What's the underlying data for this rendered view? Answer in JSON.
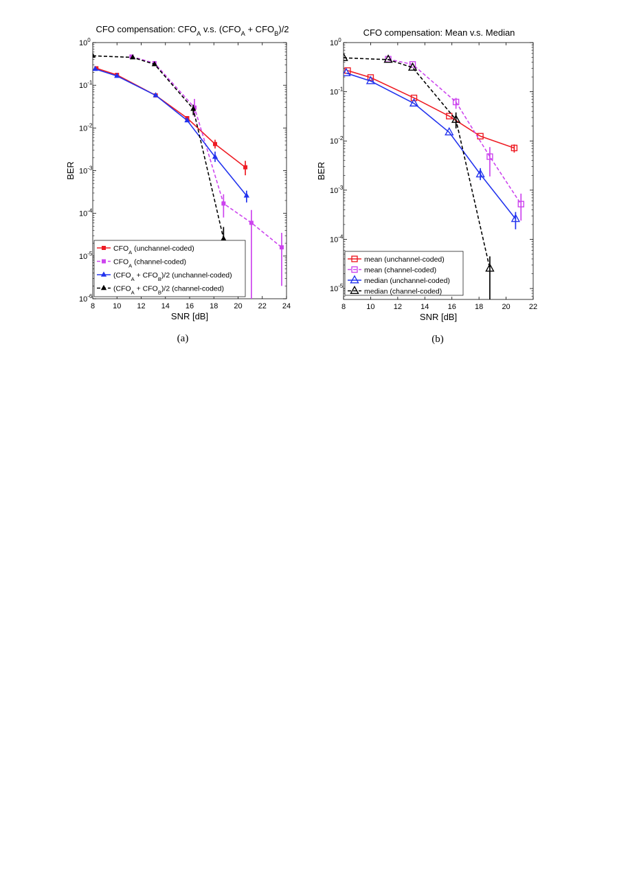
{
  "figure": {
    "caption_a": "(a)",
    "caption_b": "(b)"
  },
  "chart_data": [
    {
      "id": "a",
      "type": "line",
      "title": "CFO compensation: CFO_A v.s. (CFO_A + CFO_B)/2",
      "title_parts": [
        {
          "t": "CFO compensation: CFO"
        },
        {
          "t": "A",
          "sub": true
        },
        {
          "t": " v.s. (CFO"
        },
        {
          "t": "A",
          "sub": true
        },
        {
          "t": " + CFO"
        },
        {
          "t": "B",
          "sub": true
        },
        {
          "t": ")/2"
        }
      ],
      "xlabel": "SNR [dB]",
      "ylabel": "BER",
      "xlim": [
        8,
        24
      ],
      "xticks": [
        8,
        10,
        12,
        14,
        16,
        18,
        20,
        22,
        24
      ],
      "yscale": "log",
      "ylim": [
        1e-06,
        1
      ],
      "ytick_exponents": [
        0,
        -1,
        -2,
        -3,
        -4,
        -5,
        -6
      ],
      "grid": false,
      "legend_position": "bottom-left",
      "series": [
        {
          "name": "CFO_A (unchannel-coded)",
          "name_parts": [
            {
              "t": "CFO"
            },
            {
              "t": "A",
              "sub": true
            },
            {
              "t": " (unchannel-coded)"
            }
          ],
          "color": "#ee1c24",
          "dash": "solid",
          "marker": "square-filled",
          "x": [
            8.3,
            10.0,
            13.2,
            15.8,
            18.1,
            20.6
          ],
          "y": [
            0.25,
            0.175,
            0.058,
            0.017,
            0.0042,
            0.0012
          ],
          "err_low": [
            null,
            null,
            null,
            null,
            0.0033,
            0.00078
          ],
          "err_high": [
            null,
            null,
            null,
            null,
            0.0053,
            0.0017
          ]
        },
        {
          "name": "CFO_A (channel-coded)",
          "name_parts": [
            {
              "t": "CFO"
            },
            {
              "t": "A",
              "sub": true
            },
            {
              "t": " (channel-coded)"
            }
          ],
          "color": "#cc44ee",
          "dash": "dashed",
          "marker": "square-filled",
          "x": [
            11.2,
            13.1,
            16.4,
            18.8,
            21.1,
            23.6
          ],
          "y": [
            0.47,
            0.33,
            0.03,
            0.00017,
            6e-05,
            1.6e-05
          ],
          "err_low": [
            null,
            null,
            0.018,
            8e-05,
            5e-07,
            2e-06
          ],
          "err_high": [
            null,
            null,
            0.048,
            0.00028,
            0.00012,
            3.5e-05
          ]
        },
        {
          "name": "(CFO_A + CFO_B)/2 (unchannel-coded)",
          "name_parts": [
            {
              "t": "(CFO"
            },
            {
              "t": "A",
              "sub": true
            },
            {
              "t": " + CFO"
            },
            {
              "t": "B",
              "sub": true
            },
            {
              "t": ")/2 (unchannel-coded)"
            }
          ],
          "color": "#2233ee",
          "dash": "solid",
          "marker": "triangle-filled",
          "x": [
            8.2,
            10.0,
            13.2,
            15.8,
            18.1,
            20.7
          ],
          "y": [
            0.24,
            0.165,
            0.058,
            0.015,
            0.0021,
            0.00026
          ],
          "err_low": [
            null,
            null,
            null,
            null,
            0.0016,
            0.00018
          ],
          "err_high": [
            null,
            null,
            null,
            null,
            0.0028,
            0.00034
          ]
        },
        {
          "name": "(CFO_A + CFO_B)/2 (channel-coded)",
          "name_parts": [
            {
              "t": "(CFO"
            },
            {
              "t": "A",
              "sub": true
            },
            {
              "t": " + CFO"
            },
            {
              "t": "B",
              "sub": true
            },
            {
              "t": ")/2 (channel-coded)"
            }
          ],
          "color": "#000000",
          "dash": "dashed",
          "marker": "triangle-filled",
          "x": [
            8.0,
            11.3,
            13.1,
            16.3,
            18.8
          ],
          "y": [
            0.49,
            0.45,
            0.31,
            0.028,
            2.55e-05
          ],
          "err_low": [
            null,
            null,
            null,
            0.02,
            6e-06
          ],
          "err_high": [
            null,
            null,
            null,
            0.035,
            4.8e-05
          ]
        }
      ]
    },
    {
      "id": "b",
      "type": "line",
      "title": "CFO compensation: Mean v.s. Median",
      "title_parts": [
        {
          "t": "CFO compensation: Mean v.s. Median"
        }
      ],
      "xlabel": "SNR [dB]",
      "ylabel": "BER",
      "xlim": [
        8,
        22
      ],
      "xticks": [
        8,
        10,
        12,
        14,
        16,
        18,
        20,
        22
      ],
      "yscale": "log",
      "ylim": [
        6e-06,
        1
      ],
      "ytick_exponents": [
        0,
        -1,
        -2,
        -3,
        -4,
        -5
      ],
      "grid": false,
      "legend_position": "bottom-left",
      "series": [
        {
          "name": "mean (unchannel-coded)",
          "name_parts": [
            {
              "t": "mean (unchannel-coded)"
            }
          ],
          "color": "#ee1c24",
          "dash": "solid",
          "marker": "square-open",
          "x": [
            8.3,
            10.0,
            13.2,
            15.8,
            18.1,
            20.6
          ],
          "y": [
            0.27,
            0.195,
            0.075,
            0.032,
            0.0125,
            0.0072
          ],
          "err_low": [
            null,
            null,
            null,
            null,
            null,
            0.0058
          ],
          "err_high": [
            null,
            null,
            null,
            null,
            null,
            0.0085
          ]
        },
        {
          "name": "mean (channel-coded)",
          "name_parts": [
            {
              "t": "mean (channel-coded)"
            }
          ],
          "color": "#cc44ee",
          "dash": "dashed",
          "marker": "square-open",
          "x": [
            11.3,
            13.1,
            16.3,
            18.8,
            21.1
          ],
          "y": [
            0.46,
            0.36,
            0.062,
            0.0048,
            0.00052
          ],
          "err_low": [
            null,
            null,
            0.045,
            0.0019,
            0.00024
          ],
          "err_high": [
            null,
            null,
            0.075,
            0.0075,
            0.00085
          ]
        },
        {
          "name": "median (unchannel-coded)",
          "name_parts": [
            {
              "t": "median (unchannel-coded)"
            }
          ],
          "color": "#2233ee",
          "dash": "solid",
          "marker": "triangle-open",
          "x": [
            8.2,
            10.0,
            13.2,
            15.8,
            18.1,
            20.7
          ],
          "y": [
            0.24,
            0.165,
            0.058,
            0.015,
            0.0021,
            0.00026
          ],
          "err_low": [
            null,
            null,
            null,
            null,
            0.0016,
            0.00016
          ],
          "err_high": [
            null,
            null,
            null,
            null,
            0.0028,
            0.00036
          ]
        },
        {
          "name": "median (channel-coded)",
          "name_parts": [
            {
              "t": "median (channel-coded)"
            }
          ],
          "color": "#000000",
          "dash": "dashed",
          "marker": "triangle-open",
          "x": [
            8.0,
            11.3,
            13.1,
            16.3,
            18.8
          ],
          "y": [
            0.49,
            0.45,
            0.31,
            0.027,
            2.55e-05
          ],
          "err_low": [
            null,
            null,
            null,
            0.018,
            6e-06
          ],
          "err_high": [
            null,
            null,
            null,
            0.038,
            4.5e-05
          ]
        }
      ]
    }
  ]
}
